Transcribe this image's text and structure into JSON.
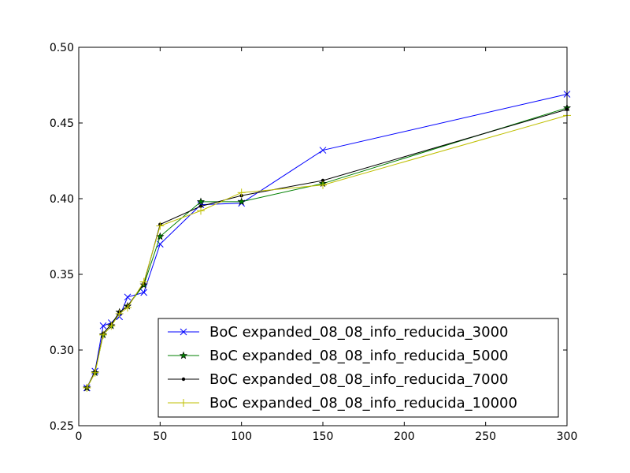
{
  "chart_data": {
    "type": "line",
    "title": "",
    "xlabel": "",
    "ylabel": "",
    "xlim": [
      0,
      300
    ],
    "ylim": [
      0.25,
      0.5
    ],
    "xticks": [
      0,
      50,
      100,
      150,
      200,
      250,
      300
    ],
    "yticks": [
      0.25,
      0.3,
      0.35,
      0.4,
      0.45,
      0.5
    ],
    "xtick_labels": [
      "0",
      "50",
      "100",
      "150",
      "200",
      "250",
      "300"
    ],
    "ytick_labels": [
      "0.25",
      "0.30",
      "0.35",
      "0.40",
      "0.45",
      "0.50"
    ],
    "grid": false,
    "legend_position": "lower-right",
    "series": [
      {
        "name": "BoC expanded_08_08_info_reducida_3000",
        "color": "#0000ff",
        "marker": "x",
        "x": [
          5,
          10,
          15,
          20,
          25,
          30,
          40,
          50,
          75,
          100,
          150,
          300
        ],
        "y": [
          0.275,
          0.286,
          0.316,
          0.318,
          0.322,
          0.335,
          0.338,
          0.37,
          0.396,
          0.397,
          0.432,
          0.469
        ]
      },
      {
        "name": "BoC expanded_08_08_info_reducida_5000",
        "color": "#008000",
        "marker": "star",
        "x": [
          5,
          10,
          15,
          20,
          25,
          30,
          40,
          50,
          75,
          100,
          150,
          300
        ],
        "y": [
          0.275,
          0.285,
          0.31,
          0.316,
          0.325,
          0.329,
          0.343,
          0.375,
          0.398,
          0.398,
          0.41,
          0.46
        ]
      },
      {
        "name": "BoC expanded_08_08_info_reducida_7000",
        "color": "#000000",
        "marker": "dot",
        "x": [
          5,
          10,
          15,
          20,
          25,
          30,
          40,
          50,
          75,
          100,
          150,
          300
        ],
        "y": [
          0.275,
          0.286,
          0.311,
          0.317,
          0.325,
          0.329,
          0.344,
          0.383,
          0.395,
          0.402,
          0.412,
          0.459
        ]
      },
      {
        "name": "BoC expanded_08_08_info_reducida_10000",
        "color": "#bfbf00",
        "marker": "plus",
        "x": [
          5,
          10,
          15,
          20,
          25,
          30,
          40,
          50,
          75,
          100,
          150,
          300
        ],
        "y": [
          0.275,
          0.285,
          0.31,
          0.316,
          0.324,
          0.328,
          0.345,
          0.382,
          0.392,
          0.404,
          0.409,
          0.455
        ]
      }
    ]
  }
}
